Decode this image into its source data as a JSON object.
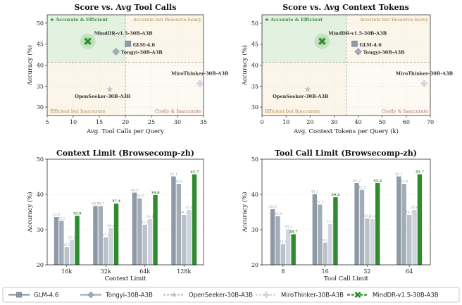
{
  "colors": {
    "glm": "#8e99a6",
    "tongyi": "#a3adb8",
    "openseeker": "#b9c1ca",
    "mirothinker": "#cfd5dc",
    "mindr": "#2e8b2e",
    "green_quad": "#e3f1e1",
    "orange_quad": "#fcf6ea",
    "quad_green_text": "#3c8d3c",
    "quad_orange_text": "#b08a4a",
    "quad_red_text": "#b06a6a"
  },
  "legend": [
    {
      "label": "GLM-4.6",
      "marker": "square",
      "color": "#8e99a6"
    },
    {
      "label": "Tongyi-30B-A3B",
      "marker": "diamond",
      "color": "#a3adb8"
    },
    {
      "label": "OpenSeeker-30B-A3B",
      "marker": "star",
      "color": "#b9c1ca"
    },
    {
      "label": "MiroThinker-30B-A3B",
      "marker": "plus",
      "color": "#cfd5dc"
    },
    {
      "label": "MindDR-v1.5-30B-A3B",
      "marker": "x",
      "color": "#2e8b2e"
    }
  ],
  "chart_data": [
    {
      "type": "scatter",
      "title": "Score  vs.  Avg Tool Calls",
      "xlabel": "Avg. Tool Calls per Query",
      "ylabel": "Accuracy (%)",
      "xlim": [
        5,
        35
      ],
      "ylim": [
        28,
        52
      ],
      "xticks": [
        "5",
        "10",
        "15",
        "20",
        "25",
        "30",
        "35"
      ],
      "yticks": [
        "30",
        "35",
        "40",
        "45",
        "50"
      ],
      "divider_x": 20,
      "divider_y": 40.7,
      "quadrants": {
        "top_left": "★ Accurate & Efficient",
        "top_right": "Accurate but Resource-heavy",
        "bottom_left": "Efficient but Inaccurate",
        "bottom_right": "Costly & Inaccurate"
      },
      "points": [
        {
          "name": "MindDR-v1.5-30B-A3B",
          "x": 12.8,
          "y": 45.7,
          "marker": "x"
        },
        {
          "name": "GLM-4.6",
          "x": 20.5,
          "y": 45.1,
          "marker": "square"
        },
        {
          "name": "Tongyi-30B-A3B",
          "x": 18.2,
          "y": 43.2,
          "marker": "diamond"
        },
        {
          "name": "MiroThinker-30B-A3B",
          "x": 34.3,
          "y": 35.6,
          "marker": "plus"
        },
        {
          "name": "OpenSeeker-30B-A3B",
          "x": 17.0,
          "y": 34.2,
          "marker": "star"
        }
      ]
    },
    {
      "type": "scatter",
      "title": "Score  vs.  Avg Context Tokens",
      "xlabel": "Avg. Context Tokens per Query (k)",
      "ylabel": "Accuracy (%)",
      "xlim": [
        0,
        70
      ],
      "ylim": [
        28,
        52
      ],
      "xticks": [
        "0",
        "10",
        "20",
        "30",
        "40",
        "50",
        "60",
        "70"
      ],
      "yticks": [
        "30",
        "35",
        "40",
        "45",
        "50"
      ],
      "divider_x": 35,
      "divider_y": 40.7,
      "quadrants": {
        "top_left": "★ Accurate & Efficient",
        "top_right": "Accurate but Resource-heavy",
        "bottom_left": "Efficient but Inaccurate",
        "bottom_right": "Costly & Inaccurate"
      },
      "points": [
        {
          "name": "MindDR-v1.5-30B-A3B",
          "x": 25,
          "y": 45.7,
          "marker": "x"
        },
        {
          "name": "GLM-4.6",
          "x": 38.5,
          "y": 45.1,
          "marker": "square"
        },
        {
          "name": "Tongyi-30B-A3B",
          "x": 40,
          "y": 43.2,
          "marker": "diamond"
        },
        {
          "name": "MiroThinker-30B-A3B",
          "x": 67.5,
          "y": 35.6,
          "marker": "plus"
        },
        {
          "name": "OpenSeeker-30B-A3B",
          "x": 19,
          "y": 34.2,
          "marker": "star"
        }
      ]
    },
    {
      "type": "bar",
      "title": "Context Limit  (Browsecomp-zh)",
      "xlabel": "Context Limit",
      "ylabel": "Accuracy (%)",
      "ylim": [
        20,
        50
      ],
      "yticks": [
        "20",
        "30",
        "40",
        "50"
      ],
      "categories": [
        "16k",
        "32k",
        "64k",
        "128k"
      ],
      "series": [
        {
          "name": "GLM-4.6",
          "values": [
            33.6,
            36.7,
            40.5,
            45.1
          ]
        },
        {
          "name": "Tongyi-30B-A3B",
          "values": [
            32.5,
            36.7,
            38.9,
            43.0
          ]
        },
        {
          "name": "OpenSeeker-30B-A3B",
          "values": [
            25.0,
            27.8,
            31.4,
            34.2
          ]
        },
        {
          "name": "MiroThinker-30B-A3B",
          "values": [
            27.1,
            30.4,
            33.0,
            35.6
          ]
        },
        {
          "name": "MindDR-v1.5-30B-A3B",
          "values": [
            33.9,
            37.4,
            39.8,
            45.7
          ]
        }
      ]
    },
    {
      "type": "bar",
      "title": "Tool Call Limit  (Browsecomp-zh)",
      "xlabel": "Tool Call Limit",
      "ylabel": "Accuracy (%)",
      "ylim": [
        20,
        50
      ],
      "yticks": [
        "20",
        "30",
        "40",
        "50"
      ],
      "categories": [
        "8",
        "16",
        "32",
        "64"
      ],
      "series": [
        {
          "name": "GLM-4.6",
          "values": [
            35.8,
            40.1,
            43.2,
            45.1
          ]
        },
        {
          "name": "Tongyi-30B-A3B",
          "values": [
            33.8,
            37.1,
            41.3,
            43.0
          ]
        },
        {
          "name": "OpenSeeker-30B-A3B",
          "values": [
            25.9,
            26.3,
            33.2,
            34.2
          ]
        },
        {
          "name": "MiroThinker-30B-A3B",
          "values": [
            30.1,
            31.6,
            33.0,
            35.6
          ]
        },
        {
          "name": "MindDR-v1.5-30B-A3B",
          "values": [
            28.7,
            39.2,
            43.2,
            45.7
          ]
        }
      ]
    }
  ]
}
